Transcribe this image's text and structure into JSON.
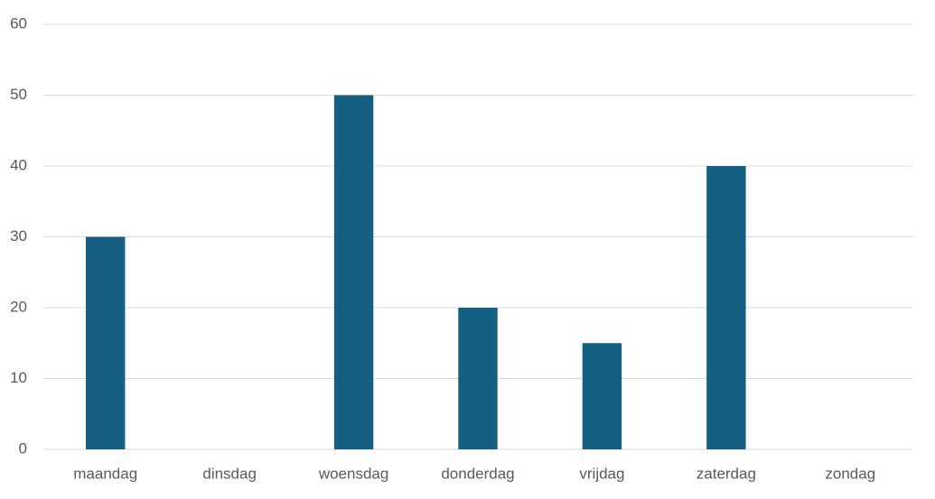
{
  "chart_data": {
    "type": "bar",
    "categories": [
      "maandag",
      "dinsdag",
      "woensdag",
      "donderdag",
      "vrijdag",
      "zaterdag",
      "zondag"
    ],
    "values": [
      30,
      0,
      50,
      20,
      15,
      40,
      0
    ],
    "color": "#156082",
    "ylim": [
      0,
      60
    ],
    "yticks": [
      0,
      10,
      20,
      30,
      40,
      50,
      60
    ],
    "grid": true
  }
}
